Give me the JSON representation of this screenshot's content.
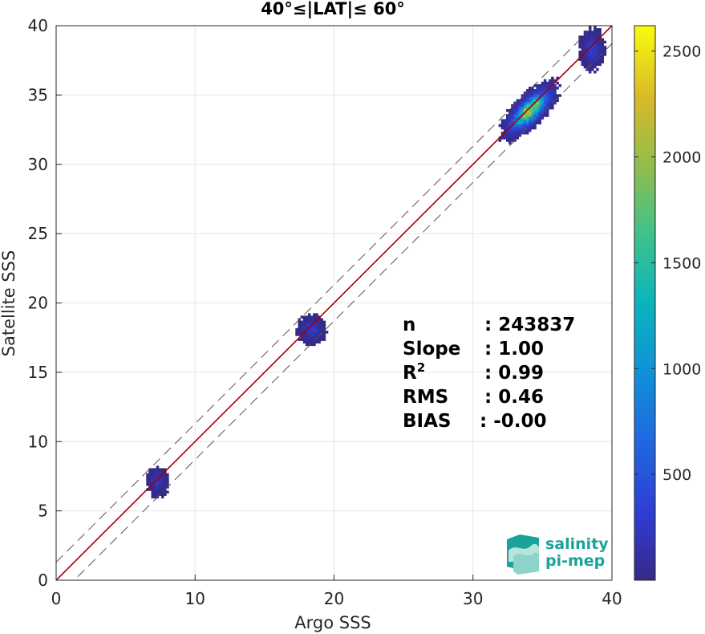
{
  "chart_data": {
    "type": "heatmap",
    "title": "40°≤|LAT|≤ 60°",
    "xlabel": "Argo SSS",
    "ylabel": "Satellite SSS",
    "xlim": [
      0,
      40
    ],
    "ylim": [
      0,
      40
    ],
    "xticks": [
      "0",
      "10",
      "20",
      "30",
      "40"
    ],
    "yticks": [
      "0",
      "5",
      "10",
      "15",
      "20",
      "25",
      "30",
      "35",
      "40"
    ],
    "grid": true,
    "reference_lines": [
      {
        "kind": "identity",
        "slope": 1,
        "intercept": 0,
        "color": "#a00000",
        "style": "solid"
      },
      {
        "kind": "offset",
        "slope": 1,
        "intercept": 1.3,
        "color": "#555555",
        "style": "dashed"
      },
      {
        "kind": "offset",
        "slope": 1,
        "intercept": -1.3,
        "color": "#555555",
        "style": "dashed"
      }
    ],
    "colorbar": {
      "min": 0,
      "max": 2620,
      "ticks": [
        "500",
        "1000",
        "1500",
        "2000",
        "2500"
      ],
      "colormap": "parula"
    },
    "clusters": [
      {
        "x_center": 7.2,
        "y_center": 7.0,
        "x_spread": 0.7,
        "y_spread": 0.9,
        "peak_count": 260
      },
      {
        "x_center": 18.3,
        "y_center": 18.0,
        "x_spread": 0.9,
        "y_spread": 0.9,
        "peak_count": 330
      },
      {
        "x_center": 34.0,
        "y_center": 33.8,
        "x_spread": 1.6,
        "y_spread": 1.4,
        "peak_count": 2620
      },
      {
        "x_center": 38.5,
        "y_center": 38.2,
        "x_spread": 0.8,
        "y_spread": 1.3,
        "peak_count": 400
      }
    ],
    "stats": [
      {
        "label": "n",
        "value": ": 243837"
      },
      {
        "label": "Slope",
        "value": ": 1.00"
      },
      {
        "label": "R",
        "sup": "2",
        "value": ": 0.99"
      },
      {
        "label": "RMS",
        "value": ": 0.46"
      },
      {
        "label": "BIAS",
        "value": ": -0.00"
      }
    ]
  },
  "logo": {
    "line1": "salinity",
    "line2": "pi-mep"
  }
}
